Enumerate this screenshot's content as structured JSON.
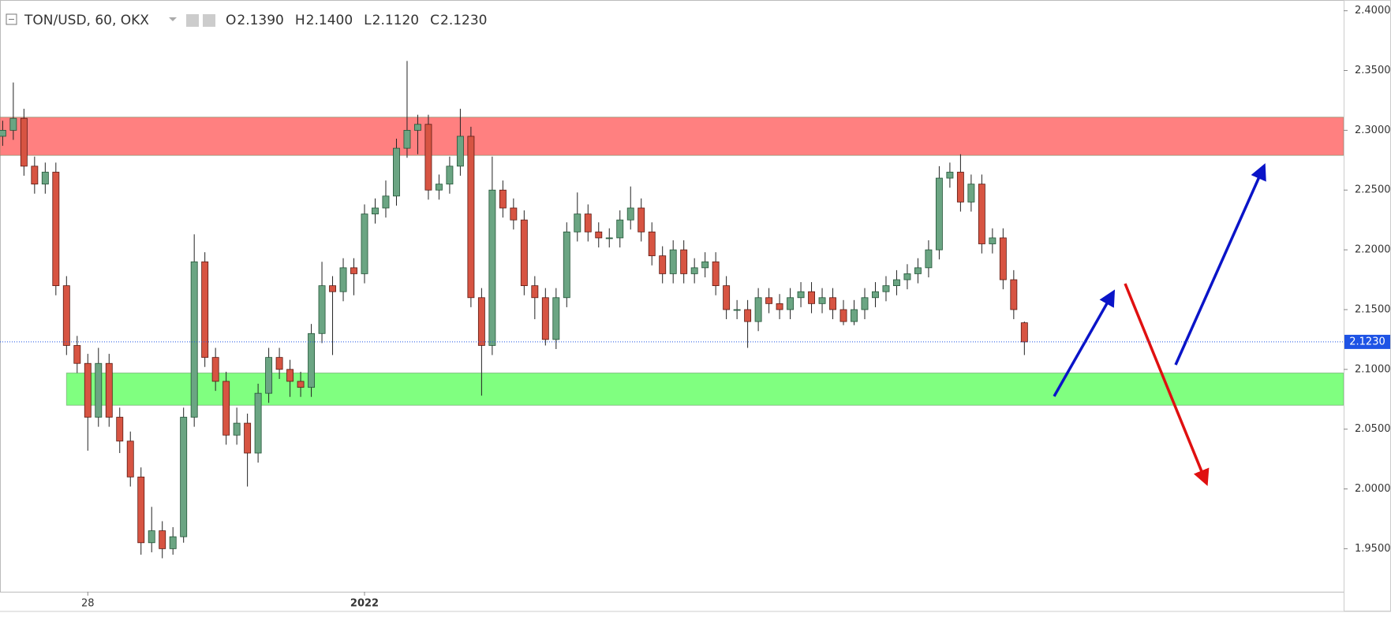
{
  "chart_data": {
    "type": "candlestick",
    "title": "TON/USD, 60, OKX",
    "ohlc_header": [
      {
        "label": "O",
        "value": "2.1390"
      },
      {
        "label": "H",
        "value": "2.1400"
      },
      {
        "label": "L",
        "value": "2.1120"
      },
      {
        "label": "C",
        "value": "2.1230"
      }
    ],
    "categories": [
      null,
      null,
      null,
      null,
      null,
      null,
      null,
      null,
      "28",
      null,
      null,
      null,
      null,
      null,
      null,
      null,
      null,
      null,
      null,
      null,
      null,
      null,
      null,
      null,
      null,
      null,
      null,
      null,
      null,
      null,
      null,
      null,
      null,
      null,
      "2022",
      null,
      null,
      null,
      null,
      null,
      null,
      null,
      null,
      null,
      null,
      null,
      null,
      null,
      null,
      null,
      null,
      null,
      null,
      null,
      null,
      null,
      null,
      null,
      null,
      null,
      null,
      null,
      null,
      null,
      null,
      null,
      null,
      null,
      null,
      null,
      null,
      null,
      null,
      null,
      null,
      null,
      null,
      null,
      null,
      null,
      null,
      null,
      null,
      null,
      null,
      null,
      null,
      null,
      null,
      null,
      null,
      null,
      null,
      null,
      null,
      null,
      null
    ],
    "open": [
      2.295,
      2.3,
      2.31,
      2.27,
      2.255,
      2.265,
      2.17,
      2.12,
      2.105,
      2.06,
      2.105,
      2.06,
      2.04,
      2.01,
      1.955,
      1.965,
      1.95,
      1.96,
      2.06,
      2.19,
      2.11,
      2.09,
      2.045,
      2.055,
      2.03,
      2.08,
      2.11,
      2.1,
      2.09,
      2.085,
      2.13,
      2.17,
      2.165,
      2.185,
      2.18,
      2.23,
      2.235,
      2.245,
      2.285,
      2.3,
      2.305,
      2.25,
      2.255,
      2.27,
      2.295,
      2.16,
      2.12,
      2.25,
      2.235,
      2.225,
      2.17,
      2.16,
      2.125,
      2.16,
      2.215,
      2.23,
      2.215,
      2.21,
      2.21,
      2.225,
      2.235,
      2.215,
      2.195,
      2.18,
      2.2,
      2.18,
      2.185,
      2.19,
      2.17,
      2.15,
      2.15,
      2.14,
      2.16,
      2.155,
      2.15,
      2.16,
      2.165,
      2.155,
      2.16,
      2.15,
      2.14,
      2.15,
      2.16,
      2.165,
      2.17,
      2.175,
      2.18,
      2.185,
      2.2,
      2.26,
      2.265,
      2.24,
      2.255,
      2.205,
      2.21,
      2.175,
      2.139
    ],
    "high": [
      2.308,
      2.34,
      2.318,
      2.278,
      2.273,
      2.273,
      2.178,
      2.128,
      2.113,
      2.118,
      2.113,
      2.068,
      2.048,
      2.018,
      1.985,
      1.973,
      1.968,
      2.068,
      2.213,
      2.198,
      2.118,
      2.098,
      2.068,
      2.063,
      2.088,
      2.118,
      2.118,
      2.108,
      2.098,
      2.138,
      2.19,
      2.178,
      2.193,
      2.193,
      2.238,
      2.243,
      2.258,
      2.293,
      2.358,
      2.313,
      2.313,
      2.263,
      2.278,
      2.318,
      2.303,
      2.168,
      2.278,
      2.258,
      2.243,
      2.233,
      2.178,
      2.168,
      2.168,
      2.223,
      2.248,
      2.238,
      2.223,
      2.218,
      2.233,
      2.253,
      2.243,
      2.223,
      2.203,
      2.208,
      2.208,
      2.193,
      2.198,
      2.198,
      2.178,
      2.158,
      2.158,
      2.168,
      2.168,
      2.163,
      2.168,
      2.173,
      2.173,
      2.168,
      2.168,
      2.158,
      2.158,
      2.168,
      2.173,
      2.178,
      2.183,
      2.188,
      2.193,
      2.208,
      2.27,
      2.273,
      2.28,
      2.263,
      2.263,
      2.218,
      2.218,
      2.183,
      2.14
    ],
    "low": [
      2.287,
      2.292,
      2.262,
      2.247,
      2.247,
      2.162,
      2.112,
      2.097,
      2.032,
      2.052,
      2.052,
      2.03,
      2.002,
      1.945,
      1.947,
      1.942,
      1.945,
      1.955,
      2.052,
      2.102,
      2.082,
      2.037,
      2.037,
      2.002,
      2.022,
      2.072,
      2.092,
      2.077,
      2.077,
      2.077,
      2.122,
      2.112,
      2.157,
      2.162,
      2.172,
      2.222,
      2.227,
      2.237,
      2.277,
      2.28,
      2.242,
      2.242,
      2.247,
      2.262,
      2.152,
      2.078,
      2.112,
      2.227,
      2.217,
      2.162,
      2.142,
      2.12,
      2.117,
      2.152,
      2.207,
      2.207,
      2.202,
      2.202,
      2.202,
      2.217,
      2.207,
      2.187,
      2.172,
      2.172,
      2.172,
      2.172,
      2.177,
      2.162,
      2.142,
      2.142,
      2.118,
      2.132,
      2.147,
      2.142,
      2.142,
      2.152,
      2.147,
      2.147,
      2.142,
      2.137,
      2.137,
      2.142,
      2.152,
      2.157,
      2.162,
      2.167,
      2.172,
      2.177,
      2.192,
      2.252,
      2.232,
      2.232,
      2.197,
      2.197,
      2.167,
      2.142,
      2.112
    ],
    "close": [
      2.3,
      2.31,
      2.27,
      2.255,
      2.265,
      2.17,
      2.12,
      2.105,
      2.06,
      2.105,
      2.06,
      2.04,
      2.01,
      1.955,
      1.965,
      1.95,
      1.96,
      2.06,
      2.19,
      2.11,
      2.09,
      2.045,
      2.055,
      2.03,
      2.08,
      2.11,
      2.1,
      2.09,
      2.085,
      2.13,
      2.17,
      2.165,
      2.185,
      2.18,
      2.23,
      2.235,
      2.245,
      2.285,
      2.3,
      2.305,
      2.25,
      2.255,
      2.27,
      2.295,
      2.16,
      2.12,
      2.25,
      2.235,
      2.225,
      2.17,
      2.16,
      2.125,
      2.16,
      2.215,
      2.23,
      2.215,
      2.21,
      2.21,
      2.225,
      2.235,
      2.215,
      2.195,
      2.18,
      2.2,
      2.18,
      2.185,
      2.19,
      2.17,
      2.15,
      2.15,
      2.14,
      2.16,
      2.155,
      2.15,
      2.16,
      2.165,
      2.155,
      2.16,
      2.15,
      2.14,
      2.15,
      2.16,
      2.165,
      2.17,
      2.175,
      2.18,
      2.185,
      2.2,
      2.26,
      2.265,
      2.24,
      2.255,
      2.205,
      2.21,
      2.175,
      2.15,
      2.123
    ],
    "up_color": "#6ba583",
    "down_color": "#d75442",
    "xlim": [
      -0.25,
      126
    ],
    "ylim": [
      1.914,
      2.409
    ],
    "yticks": [
      {
        "value": 1.95,
        "label": "1.9500"
      },
      {
        "value": 2.0,
        "label": "2.0000"
      },
      {
        "value": 2.05,
        "label": "2.0500"
      },
      {
        "value": 2.1,
        "label": "2.1000"
      },
      {
        "value": 2.15,
        "label": "2.1500"
      },
      {
        "value": 2.2,
        "label": "2.2000"
      },
      {
        "value": 2.25,
        "label": "2.2500"
      },
      {
        "value": 2.3,
        "label": "2.3000"
      },
      {
        "value": 2.35,
        "label": "2.3500"
      },
      {
        "value": 2.4,
        "label": "2.4000"
      }
    ],
    "grid": false,
    "zones": [
      {
        "from": 2.279,
        "to": 2.311,
        "start": -0.25,
        "color": "#ff8080"
      },
      {
        "from": 2.07,
        "to": 2.097,
        "start": 6,
        "color": "#80ff80"
      }
    ],
    "last_price": {
      "value": 2.123,
      "label": "2.1230",
      "color": "#1e53e5"
    }
  }
}
